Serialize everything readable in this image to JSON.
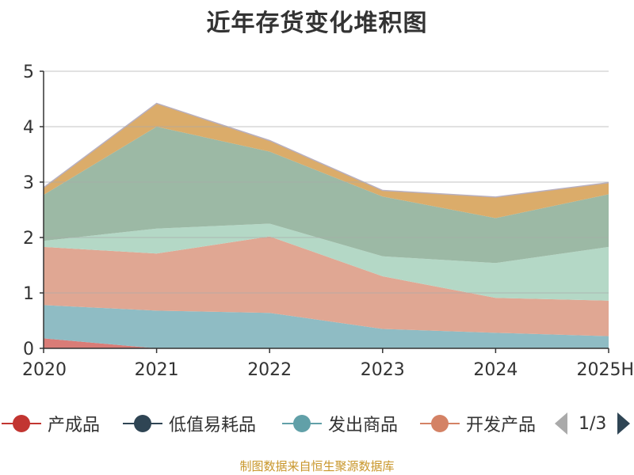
{
  "title": "近年存货变化堆积图",
  "source": "制图数据来自恒生聚源数据库",
  "pager": {
    "text": "1/3"
  },
  "legend": [
    {
      "label": "产成品",
      "color": "#c23531"
    },
    {
      "label": "低值易耗品",
      "color": "#2f4554"
    },
    {
      "label": "发出商品",
      "color": "#61a0a8"
    },
    {
      "label": "开发产品",
      "color": "#d48265"
    }
  ],
  "chart_data": {
    "type": "area",
    "stacked": true,
    "categories": [
      "2020",
      "2021",
      "2022",
      "2023",
      "2024",
      "2025H"
    ],
    "ylim": [
      0,
      5
    ],
    "yticks": [
      0,
      1,
      2,
      3,
      4,
      5
    ],
    "grid": true,
    "series": [
      {
        "name": "产成品",
        "color": "#d97c77",
        "values": [
          0.18,
          0.0,
          0.0,
          0.0,
          0.0,
          0.0
        ]
      },
      {
        "name": "低值易耗品",
        "color": "#2f4554",
        "values": [
          0.0,
          0.0,
          0.0,
          0.0,
          0.0,
          0.0
        ]
      },
      {
        "name": "发出商品",
        "color": "#8fbcc4",
        "values": [
          0.6,
          0.68,
          0.64,
          0.35,
          0.28,
          0.22
        ]
      },
      {
        "name": "开发产品",
        "color": "#e0a793",
        "values": [
          1.05,
          1.03,
          1.38,
          0.95,
          0.63,
          0.64
        ]
      },
      {
        "color": "#b4d8c6",
        "values": [
          0.11,
          0.45,
          0.23,
          0.36,
          0.63,
          0.97
        ]
      },
      {
        "color": "#9cb9a5",
        "values": [
          0.83,
          1.84,
          1.3,
          1.08,
          0.81,
          0.95
        ]
      },
      {
        "color": "#dbac6a",
        "values": [
          0.13,
          0.42,
          0.2,
          0.11,
          0.38,
          0.21
        ]
      }
    ]
  }
}
